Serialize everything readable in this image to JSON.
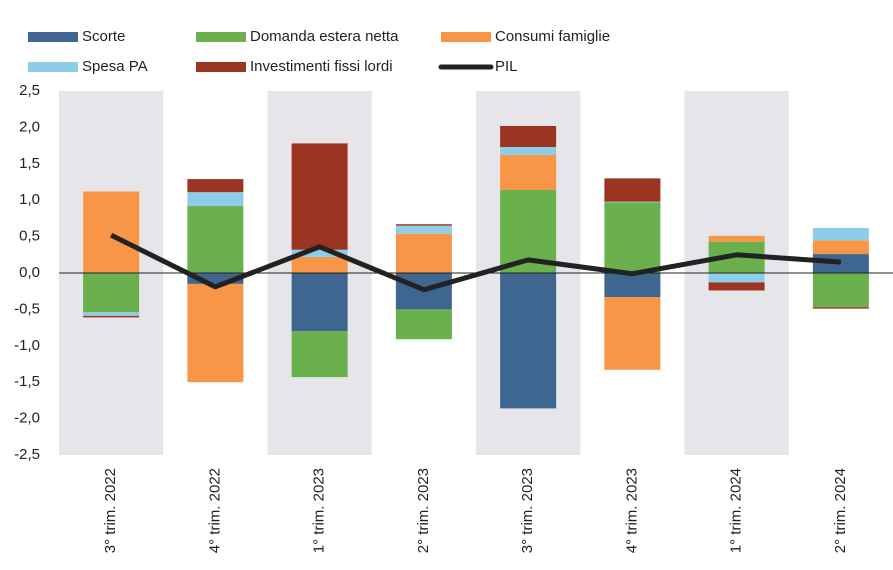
{
  "chart_data": {
    "type": "bar",
    "stacked": true,
    "categories": [
      "3° trim. 2022",
      "4° trim. 2022",
      "1° trim. 2023",
      "2° trim. 2023",
      "3° trim. 2023",
      "4° trim. 2023",
      "1° trim. 2024",
      "2° trim. 2024"
    ],
    "series": [
      {
        "name": "Scorte",
        "color": "#3f6690",
        "values": [
          0.01,
          -0.15,
          -0.8,
          -0.5,
          -1.86,
          -0.33,
          0,
          0.26
        ]
      },
      {
        "name": "Domanda estera netta",
        "color": "#6ab04c",
        "values": [
          -0.54,
          0.92,
          -0.63,
          -0.41,
          1.14,
          0.97,
          0.43,
          -0.47
        ]
      },
      {
        "name": "Consumi famiglie",
        "color": "#f79646",
        "values": [
          1.11,
          -1.35,
          0.22,
          0.54,
          0.48,
          -1.0,
          0.08,
          0.19
        ]
      },
      {
        "name": "Spesa PA",
        "color": "#8ecde9",
        "values": [
          -0.05,
          0.19,
          0.1,
          0.11,
          0.11,
          0.01,
          -0.13,
          0.17
        ]
      },
      {
        "name": "Investimenti fissi lordi",
        "color": "#9c3422",
        "values": [
          -0.02,
          0.18,
          1.46,
          0.02,
          0.29,
          0.32,
          -0.11,
          -0.02
        ]
      },
      {
        "name": "PIL",
        "type": "line",
        "color": "#222222",
        "values": [
          0.52,
          -0.19,
          0.36,
          -0.23,
          0.18,
          -0.01,
          0.25,
          0.15
        ]
      }
    ],
    "ylim": [
      -2.5,
      2.5
    ],
    "yticks": [
      {
        "value": -2.5,
        "label": "-2,5"
      },
      {
        "value": -2,
        "label": "-2,0"
      },
      {
        "value": -1.5,
        "label": "-1,5"
      },
      {
        "value": -1,
        "label": "-1,0"
      },
      {
        "value": -0.5,
        "label": "-0,5"
      },
      {
        "value": 0,
        "label": "0,0"
      },
      {
        "value": 0.5,
        "label": "0,5"
      },
      {
        "value": 1,
        "label": "1,0"
      },
      {
        "value": 1.5,
        "label": "1,5"
      },
      {
        "value": 2,
        "label": "2,0"
      },
      {
        "value": 2.5,
        "label": "2,5"
      }
    ],
    "legend": "top"
  }
}
